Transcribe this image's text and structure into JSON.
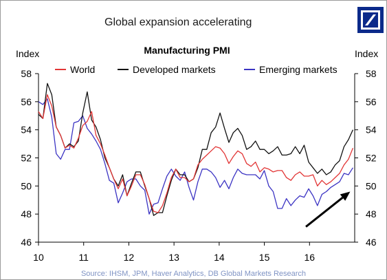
{
  "slide": {
    "title": "Global expansion accelerating",
    "source": "Source: IHSM, JPM, Haver Analytics, DB Global Markets Research"
  },
  "logo": {
    "icon": "deutsche-bank-slash-logo",
    "color": "#0b2a8a"
  },
  "chart_data": {
    "type": "line",
    "title": "Manufacturing PMI",
    "ylabel_left": "Index",
    "ylabel_right": "Index",
    "xlabel": "",
    "xlim": [
      10,
      17
    ],
    "ylim": [
      46,
      58
    ],
    "yticks": [
      46,
      48,
      50,
      52,
      54,
      56,
      58
    ],
    "xticks": [
      {
        "value": 10,
        "label": "10"
      },
      {
        "value": 11,
        "label": "11"
      },
      {
        "value": 12,
        "label": "12"
      },
      {
        "value": 13,
        "label": "13"
      },
      {
        "value": 14,
        "label": "14"
      },
      {
        "value": 15,
        "label": "15"
      },
      {
        "value": 16,
        "label": "16"
      }
    ],
    "grid": false,
    "legend_position": "top",
    "annotation": {
      "type": "arrow",
      "from": [
        15.92,
        47.1
      ],
      "to": [
        16.9,
        49.6
      ]
    },
    "series": [
      {
        "name": "World",
        "color": "#e23535",
        "values": [
          55.3,
          54.8,
          56.5,
          55.7,
          54.2,
          53.6,
          52.7,
          52.9,
          52.7,
          53.4,
          54.3,
          54.6,
          55.3,
          53.6,
          53.0,
          52.2,
          51.3,
          50.5,
          49.8,
          50.5,
          49.3,
          50.0,
          50.8,
          50.8,
          50.1,
          49.1,
          48.2,
          48.1,
          48.6,
          49.5,
          50.6,
          51.2,
          50.6,
          50.6,
          50.3,
          50.5,
          51.5,
          51.9,
          52.2,
          52.5,
          52.8,
          52.7,
          52.3,
          51.6,
          52.1,
          52.5,
          52.3,
          51.6,
          51.4,
          51.7,
          51.0,
          51.3,
          51.2,
          51.0,
          51.1,
          51.1,
          50.6,
          50.4,
          50.8,
          51.0,
          50.7,
          50.7,
          50.8,
          50.0,
          50.4,
          50.1,
          50.3,
          50.6,
          50.9,
          51.5,
          51.9,
          52.7
        ]
      },
      {
        "name": "Developed markets",
        "color": "#111111",
        "values": [
          55.1,
          54.8,
          57.3,
          56.5,
          54.2,
          53.6,
          52.7,
          53.0,
          52.8,
          53.2,
          55.2,
          56.7,
          54.7,
          54.2,
          53.3,
          52.0,
          51.3,
          50.5,
          50.0,
          50.8,
          49.3,
          50.2,
          51.0,
          51.0,
          50.0,
          49.1,
          47.9,
          48.1,
          48.1,
          49.3,
          50.4,
          51.2,
          50.8,
          50.8,
          50.3,
          50.5,
          51.3,
          52.6,
          52.6,
          53.8,
          54.2,
          55.2,
          54.1,
          53.1,
          53.8,
          54.1,
          53.6,
          52.6,
          52.8,
          53.2,
          52.6,
          52.6,
          52.3,
          52.5,
          52.8,
          52.2,
          52.2,
          52.3,
          52.8,
          52.3,
          52.9,
          51.7,
          51.3,
          50.9,
          51.2,
          50.8,
          51.0,
          51.5,
          51.8,
          52.8,
          53.3,
          54.0
        ]
      },
      {
        "name": "Emerging markets",
        "color": "#3b33c3",
        "values": [
          56.0,
          55.8,
          56.2,
          54.9,
          52.3,
          51.9,
          52.6,
          52.6,
          54.5,
          54.6,
          55.0,
          54.1,
          53.7,
          53.2,
          52.6,
          51.6,
          50.4,
          50.2,
          48.8,
          49.5,
          50.3,
          50.5,
          50.5,
          50.0,
          49.7,
          48.0,
          48.7,
          48.8,
          49.8,
          50.7,
          51.2,
          50.7,
          50.4,
          51.0,
          49.9,
          49.0,
          50.3,
          51.2,
          51.2,
          51.0,
          50.6,
          49.9,
          50.4,
          49.8,
          50.6,
          51.2,
          50.9,
          50.8,
          50.8,
          50.8,
          50.5,
          51.1,
          50.0,
          49.6,
          48.4,
          48.4,
          49.1,
          48.6,
          49.0,
          49.3,
          49.2,
          49.8,
          49.3,
          48.6,
          49.4,
          49.6,
          49.9,
          50.1,
          50.3,
          50.9,
          50.8,
          51.3
        ]
      }
    ]
  }
}
